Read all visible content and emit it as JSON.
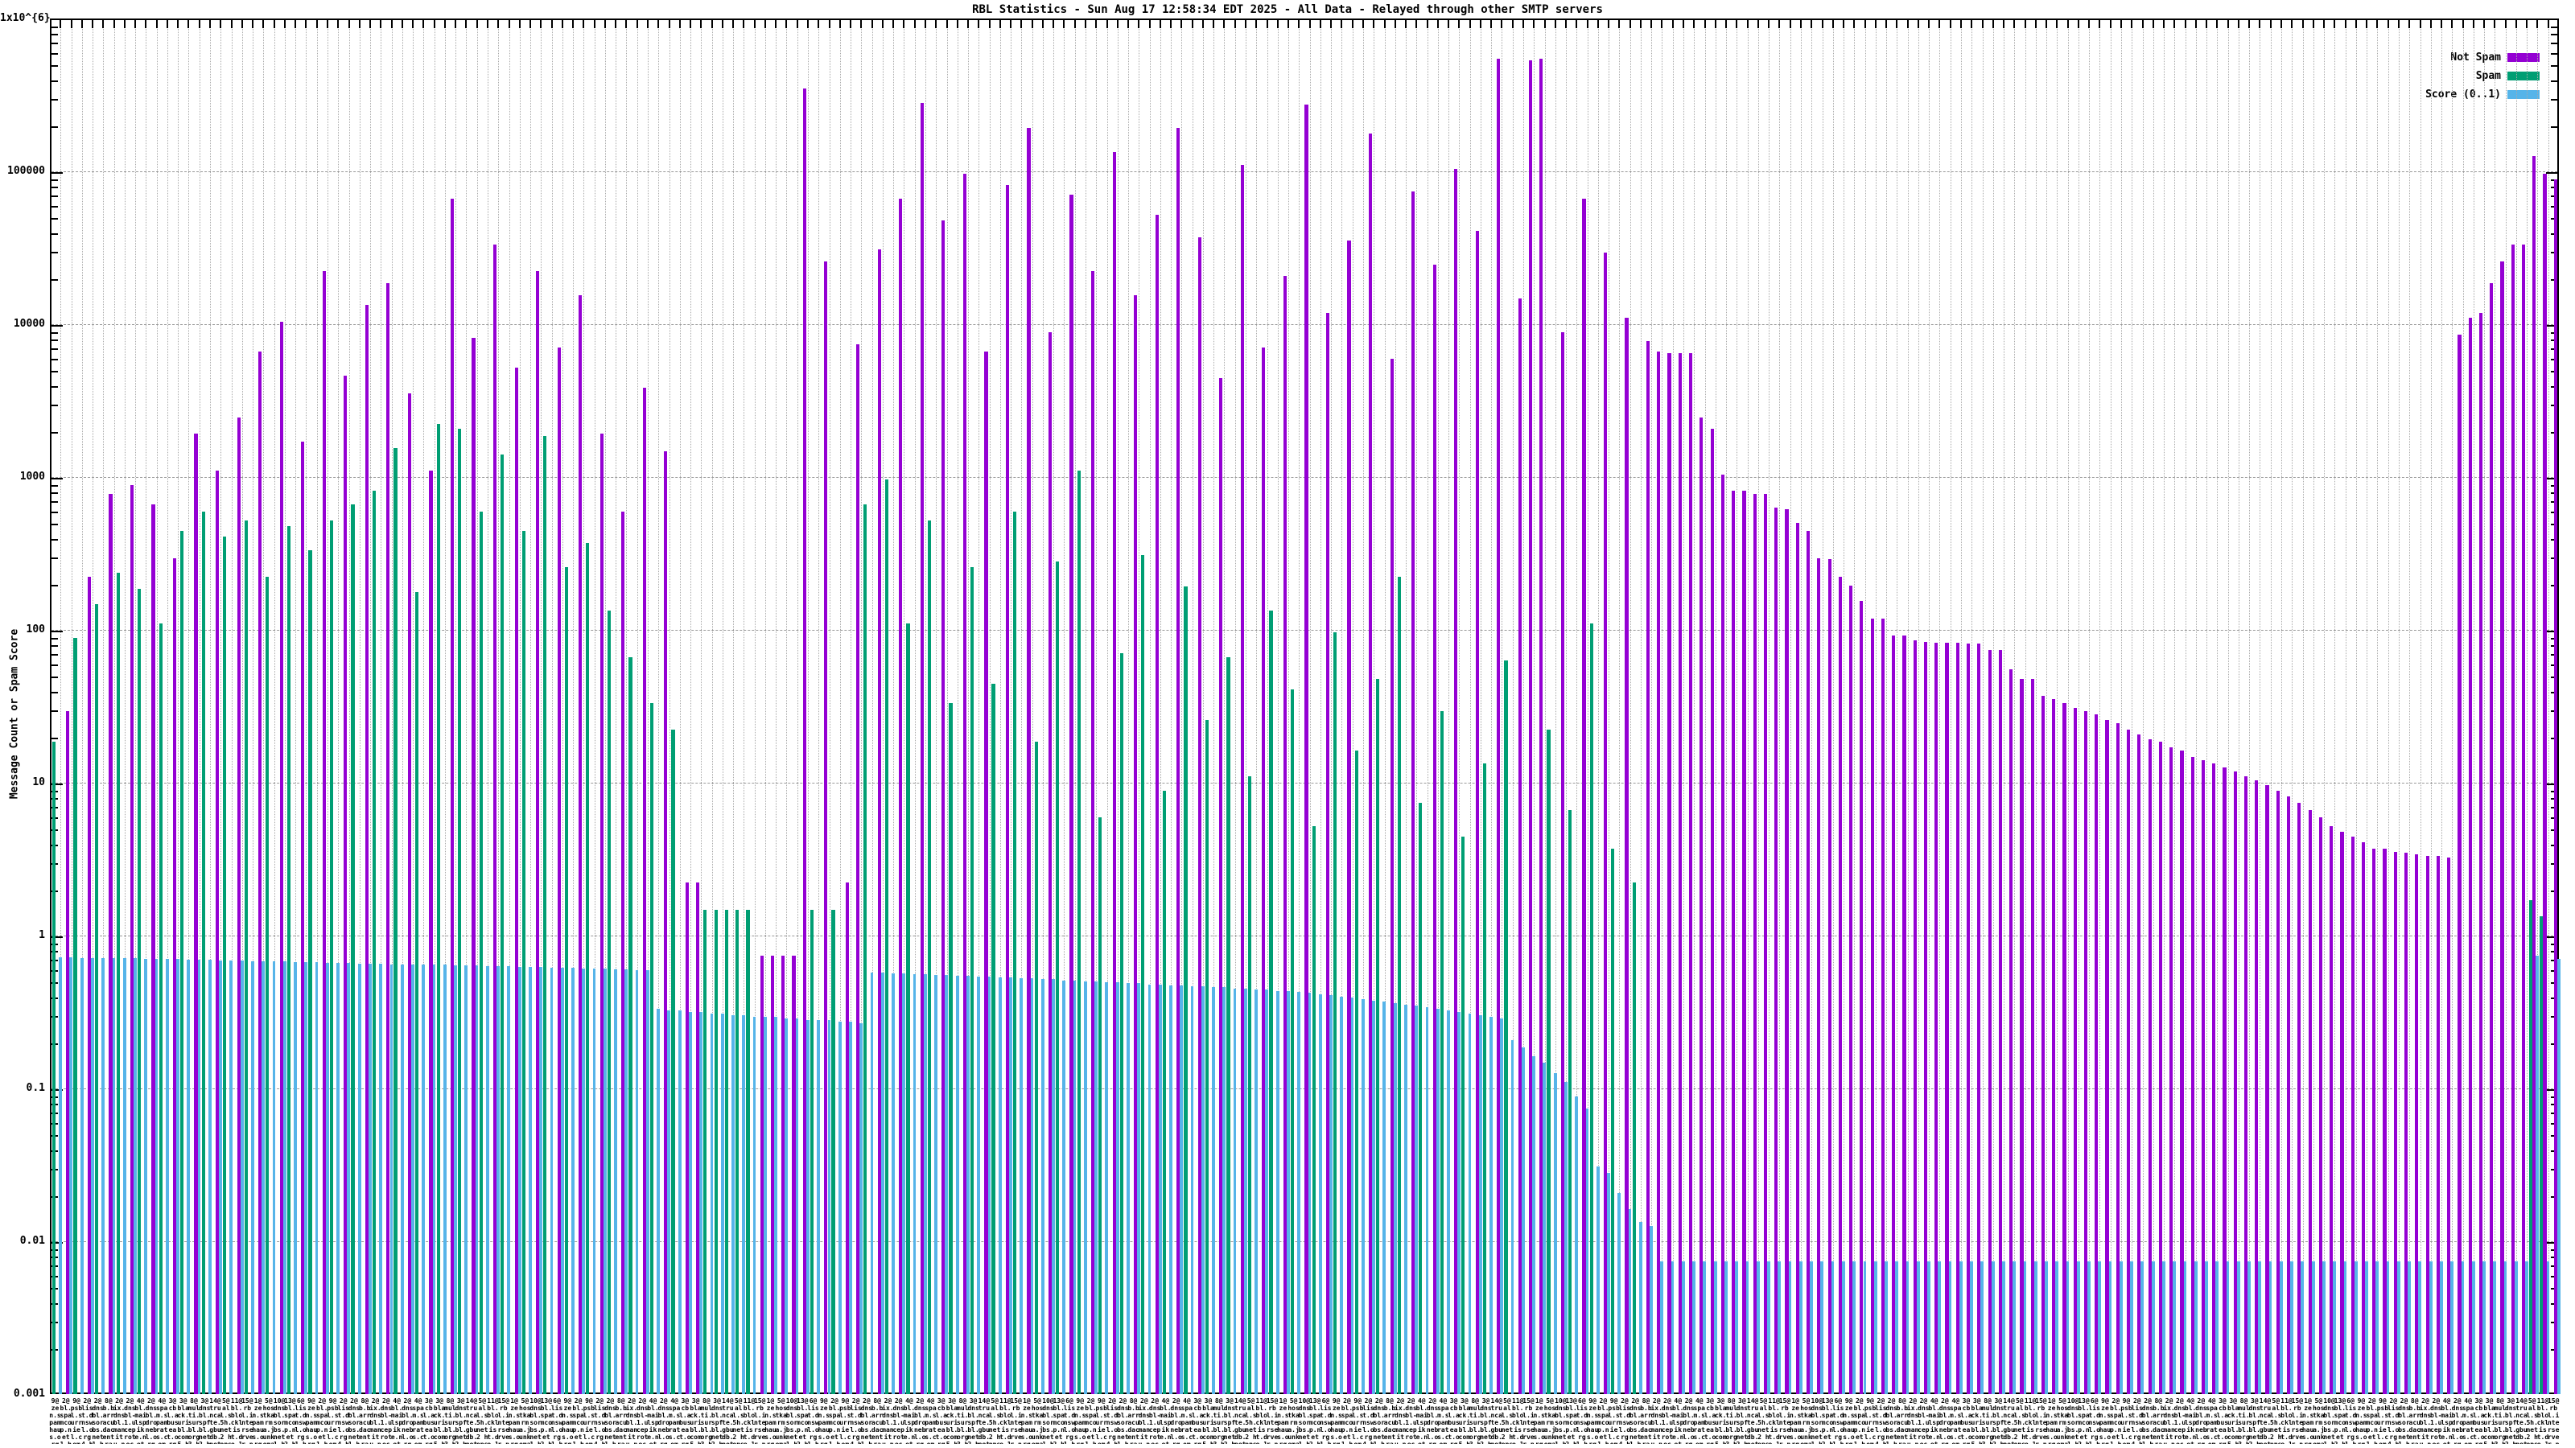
{
  "chart_data": {
    "type": "bar",
    "title": "RBL Statistics - Sun Aug 17 12:58:34 EDT 2025 - All Data - Relayed through other SMTP servers",
    "ylabel": "Message Count or Spam Score",
    "y_scale": "log",
    "ylim": [
      0.001,
      1000000
    ],
    "yticks": [
      "1x10^{6}",
      "100000",
      "10000",
      "1000",
      "100",
      "10",
      "1",
      "0.1",
      "0.01",
      "0.001"
    ],
    "grid": true,
    "legend_position": "top-right-inside",
    "series_legend": [
      {
        "label": "Not Spam",
        "color": "#9400d3"
      },
      {
        "label": "Spam",
        "color": "#009e73"
      },
      {
        "label": "Score (0..1)",
        "color": "#56b4e9"
      }
    ],
    "n_groups": 235,
    "x_labels_cycle": [
      "9@ zen.spamhaus.org 2 hops",
      "2@ bl.spamcop.net 1 hop",
      "9@ psbl.surriel.com 1 hop",
      "2@ list.dnswl.org 4 hops",
      "2@ dnsbl.sorbs.net 1 hop",
      "8@ b.barracudacentral.org 5 hops",
      "2@ ix.dnsbl.manitu.net 1 hop",
      "2@ dnsbl-1.uceprotect.net 2 hops",
      "4@ bl.mailspike.net 3 hops",
      "2@ dnsbl.dronebl.org 1 hop",
      "4@ spam.spamrats.com 1 hop",
      "3@ cbl.abuseat.org 2 hops",
      "3@ black.uribl.com 5 hops",
      "8@ multi.surbl.org 3 hops",
      "3@ dnsbl.spfbl.net 2 hops",
      "14@ truncate.gbudb.net 1 hop",
      "5@ all.s5h.net 2 hops",
      "11@ bl.blocklist.de 1 hop",
      "15@ rbl.interserver.net 3 hops",
      "1@ zen.spamhaus.org 1 hop",
      "5@ hostkarma.junkemailfilter.com 2 hops",
      "10@ dnsbl.sorbs.net 1 hop",
      "13@ bl.spamcop.net 2 hops",
      "6@ list.dnswl.org 1 hop"
    ],
    "series": {
      "not_spam": [
        0,
        40,
        0,
        300,
        0,
        1050,
        0,
        1200,
        0,
        900,
        0,
        400,
        0,
        2600,
        0,
        1500,
        0,
        3300,
        0,
        9000,
        0,
        14000,
        0,
        2300,
        0,
        30000,
        0,
        6200,
        0,
        18000,
        0,
        25000,
        0,
        4800,
        0,
        1500,
        0,
        90000,
        0,
        11000,
        0,
        45000,
        0,
        7000,
        0,
        30000,
        0,
        9500,
        0,
        21000,
        0,
        2600,
        0,
        800,
        0,
        5200,
        0,
        2000,
        0,
        3,
        3,
        0,
        0,
        0,
        0,
        0,
        1,
        1,
        1,
        1,
        470000,
        0,
        35000,
        0,
        3,
        10000,
        0,
        42000,
        0,
        90000,
        0,
        380000,
        0,
        65000,
        0,
        130000,
        0,
        9000,
        0,
        110000,
        0,
        260000,
        0,
        12000,
        0,
        95000,
        0,
        30000,
        0,
        180000,
        0,
        21000,
        0,
        70000,
        0,
        260000,
        0,
        50000,
        0,
        6000,
        0,
        150000,
        0,
        9500,
        0,
        28000,
        0,
        370000,
        0,
        16000,
        0,
        48000,
        0,
        240000,
        0,
        8000,
        0,
        100000,
        0,
        33000,
        0,
        140000,
        0,
        55000,
        0,
        740000,
        0,
        20000,
        720000,
        740000,
        0,
        12000,
        0,
        90000,
        0,
        40000,
        0,
        15000,
        0,
        10500,
        9000,
        8800,
        8800,
        8700,
        3300,
        2800,
        1400,
        1100,
        1100,
        1050,
        1050,
        850,
        830,
        680,
        600,
        400,
        395,
        300,
        265,
        210,
        160,
        160,
        125,
        125,
        115,
        113,
        112,
        112,
        111,
        110,
        110,
        100,
        100,
        75,
        65,
        65,
        50,
        48,
        45,
        42,
        40,
        38,
        35,
        33,
        30,
        28,
        26,
        25,
        23,
        22,
        20,
        19,
        18,
        17,
        16,
        15,
        14,
        13,
        12,
        11,
        10,
        9,
        8,
        7,
        6.5,
        6,
        5.5,
        5,
        5,
        4.8,
        4.7,
        4.6,
        4.5,
        4.5,
        4.4,
        11500,
        15000,
        16000,
        25000,
        35000,
        45000,
        45000,
        170000,
        130000,
        120000
      ],
      "spam": [
        25,
        0,
        120,
        0,
        200,
        0,
        320,
        0,
        250,
        0,
        150,
        0,
        600,
        0,
        800,
        0,
        550,
        0,
        700,
        0,
        300,
        0,
        650,
        0,
        450,
        0,
        700,
        0,
        900,
        0,
        1100,
        0,
        2100,
        0,
        240,
        0,
        3000,
        0,
        2800,
        0,
        800,
        0,
        1900,
        0,
        600,
        0,
        2500,
        0,
        350,
        0,
        500,
        0,
        180,
        0,
        90,
        0,
        45,
        0,
        30,
        0,
        0,
        2,
        2,
        2,
        2,
        2,
        0,
        0,
        0,
        0,
        0,
        2,
        0,
        2,
        0,
        0,
        900,
        0,
        1300,
        0,
        150,
        0,
        700,
        0,
        45,
        0,
        350,
        0,
        60,
        0,
        800,
        0,
        25,
        0,
        380,
        0,
        1500,
        0,
        8,
        0,
        95,
        0,
        420,
        0,
        12,
        0,
        260,
        0,
        35,
        0,
        90,
        0,
        15,
        0,
        180,
        0,
        55,
        0,
        7,
        0,
        130,
        0,
        22,
        0,
        65,
        0,
        300,
        0,
        10,
        0,
        40,
        0,
        6,
        0,
        18,
        0,
        85,
        0,
        0,
        0,
        30,
        0,
        9,
        0,
        150,
        0,
        5,
        0,
        3,
        0,
        0,
        0,
        0,
        0,
        0,
        0,
        0,
        0,
        0,
        0,
        0,
        0,
        0,
        0,
        0,
        0,
        0,
        0,
        0,
        0,
        0,
        0,
        0,
        0,
        0,
        0,
        0,
        0,
        0,
        0,
        0,
        0,
        0,
        0,
        0,
        0,
        0,
        0,
        0,
        0,
        0,
        0,
        0,
        0,
        0,
        0,
        0,
        0,
        0,
        0,
        0,
        0,
        0,
        0,
        0,
        0,
        0,
        0,
        0,
        0,
        0,
        0,
        0,
        0,
        0,
        0,
        0,
        0,
        0,
        0,
        0,
        0,
        0,
        0,
        0,
        0,
        0,
        0,
        0,
        0,
        0,
        0,
        2.3,
        1.8,
        0
      ],
      "score": [
        0.98,
        0.98,
        0.97,
        0.97,
        0.97,
        0.96,
        0.96,
        0.96,
        0.95,
        0.95,
        0.95,
        0.95,
        0.94,
        0.94,
        0.94,
        0.93,
        0.93,
        0.93,
        0.92,
        0.92,
        0.92,
        0.92,
        0.91,
        0.91,
        0.91,
        0.9,
        0.9,
        0.9,
        0.89,
        0.89,
        0.89,
        0.88,
        0.88,
        0.88,
        0.87,
        0.87,
        0.87,
        0.86,
        0.86,
        0.86,
        0.85,
        0.85,
        0.85,
        0.84,
        0.84,
        0.84,
        0.83,
        0.83,
        0.83,
        0.82,
        0.82,
        0.82,
        0.81,
        0.81,
        0.8,
        0.8,
        0.45,
        0.44,
        0.44,
        0.43,
        0.43,
        0.42,
        0.42,
        0.41,
        0.41,
        0.4,
        0.4,
        0.4,
        0.39,
        0.39,
        0.38,
        0.38,
        0.38,
        0.37,
        0.37,
        0.36,
        0.78,
        0.78,
        0.77,
        0.77,
        0.76,
        0.76,
        0.75,
        0.75,
        0.74,
        0.74,
        0.73,
        0.73,
        0.72,
        0.72,
        0.71,
        0.71,
        0.7,
        0.7,
        0.69,
        0.69,
        0.68,
        0.68,
        0.67,
        0.67,
        0.66,
        0.66,
        0.65,
        0.65,
        0.64,
        0.64,
        0.63,
        0.63,
        0.62,
        0.62,
        0.61,
        0.61,
        0.6,
        0.6,
        0.59,
        0.59,
        0.58,
        0.57,
        0.56,
        0.55,
        0.54,
        0.53,
        0.52,
        0.51,
        0.5,
        0.49,
        0.48,
        0.47,
        0.46,
        0.45,
        0.44,
        0.43,
        0.42,
        0.41,
        0.4,
        0.39,
        0.28,
        0.25,
        0.22,
        0.2,
        0.17,
        0.15,
        0.12,
        0.1,
        0.042,
        0.038,
        0.028,
        0.022,
        0.018,
        0.017,
        0.01,
        0.01,
        0.01,
        0.01,
        0.01,
        0.01,
        0.01,
        0.01,
        0.01,
        0.01,
        0.01,
        0.01,
        0.01,
        0.01,
        0.01,
        0.01,
        0.01,
        0.01,
        0.01,
        0.01,
        0.01,
        0.01,
        0.01,
        0.01,
        0.01,
        0.01,
        0.01,
        0.01,
        0.01,
        0.01,
        0.01,
        0.01,
        0.01,
        0.01,
        0.01,
        0.01,
        0.01,
        0.01,
        0.01,
        0.01,
        0.01,
        0.01,
        0.01,
        0.01,
        0.01,
        0.01,
        0.01,
        0.01,
        0.01,
        0.01,
        0.01,
        0.01,
        0.01,
        0.01,
        0.01,
        0.01,
        0.01,
        0.01,
        0.01,
        0.01,
        0.01,
        0.01,
        0.01,
        0.01,
        0.01,
        0.01,
        0.01,
        0.01,
        0.01,
        0.01,
        0.01,
        0.01,
        0.01,
        0.01,
        0.01,
        0.01,
        0.01,
        0.01,
        0.01,
        0.01,
        0.01,
        0.01,
        1.0,
        0.01,
        0.95
      ]
    }
  },
  "colors": {
    "background": "#ffffff",
    "border": "#000000",
    "grid": "#9a9a9a",
    "not_spam": "#9400d3",
    "spam": "#009e73",
    "score": "#56b4e9"
  }
}
